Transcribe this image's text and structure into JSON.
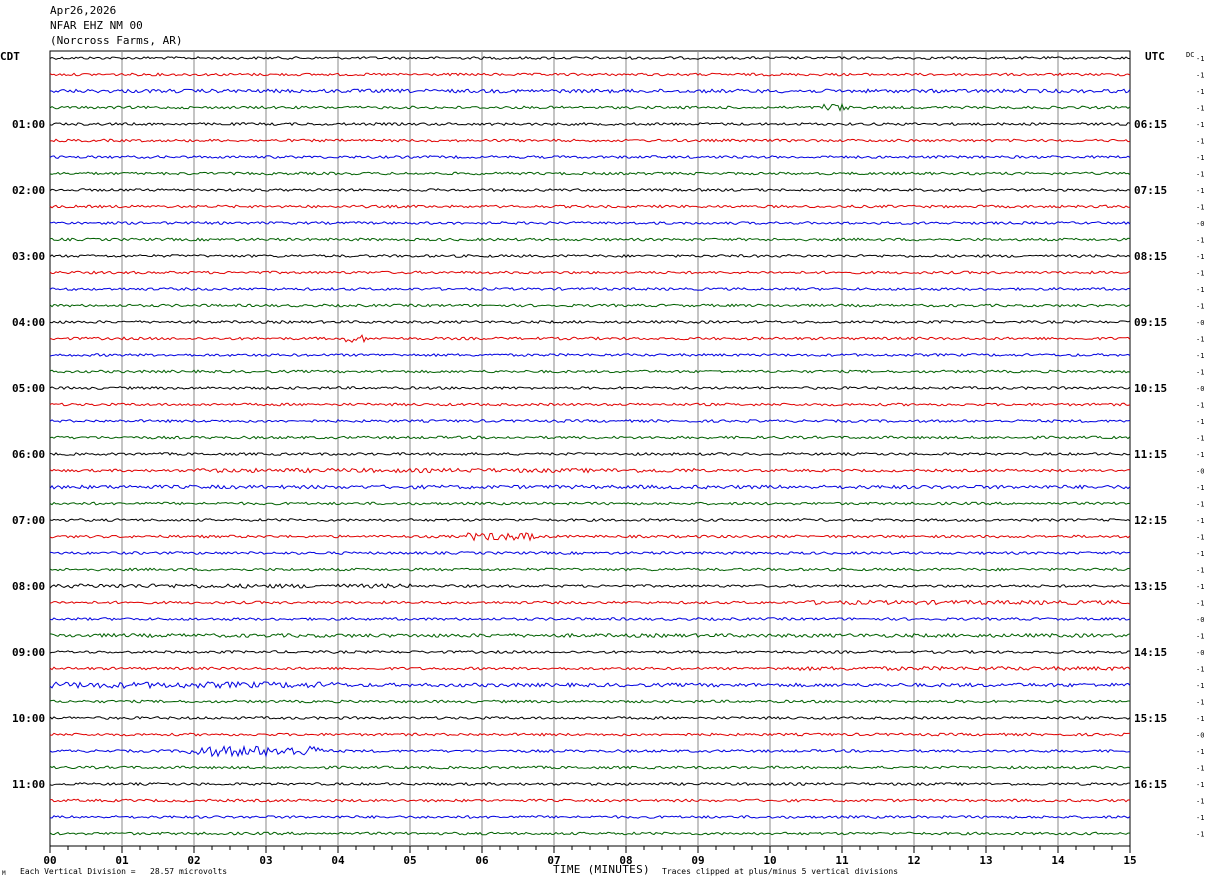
{
  "header": {
    "date": "Apr26,2026",
    "station": "NFAR EHZ NM 00",
    "location": "(Norcross Farms, AR)"
  },
  "footer": {
    "scale_note": "Each Vertical Division =   28.57 microvolts",
    "clip_note": "Traces clipped at plus/minus 5 vertical divisions",
    "corner_mark": "M"
  },
  "chart_data": {
    "type": "line",
    "title": "",
    "xlabel": "TIME (MINUTES)",
    "ylabel": "",
    "x_ticks": [
      "00",
      "01",
      "02",
      "03",
      "04",
      "05",
      "06",
      "07",
      "08",
      "09",
      "10",
      "11",
      "12",
      "13",
      "14",
      "15"
    ],
    "xlim": [
      0,
      15
    ],
    "left_timezone": "CDT",
    "right_timezone": "UTC",
    "dc_label": "DC",
    "left_hour_labels": [
      "01:00",
      "02:00",
      "03:00",
      "04:00",
      "05:00",
      "06:00",
      "07:00",
      "08:00",
      "09:00",
      "10:00",
      "11:00"
    ],
    "right_hour_labels": [
      "06:15",
      "07:15",
      "08:15",
      "09:15",
      "10:15",
      "11:15",
      "12:15",
      "13:15",
      "14:15",
      "15:15",
      "16:15"
    ],
    "trace_colors": [
      "#000000",
      "#e00000",
      "#0000e0",
      "#006000"
    ],
    "row_count": 48,
    "dc_offsets": [
      "-1",
      "-1",
      "-1",
      "-1",
      "-1",
      "-1",
      "-1",
      "-1",
      "-1",
      "-1",
      "-0",
      "-1",
      "-1",
      "-1",
      "-1",
      "-1",
      "-0",
      "-1",
      "-1",
      "-1",
      "-0",
      "-1",
      "-1",
      "-1",
      "-1",
      "-0",
      "-1",
      "-1",
      "-1",
      "-1",
      "-1",
      "-1",
      "-1",
      "-1",
      "-0",
      "-1",
      "-0",
      "-1",
      "-1",
      "-1",
      "-1",
      "-0",
      "-1",
      "-1",
      "-1",
      "-1",
      "-1",
      "-1"
    ],
    "grid": true
  }
}
